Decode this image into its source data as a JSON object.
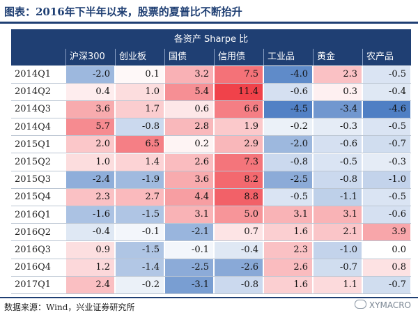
{
  "figure": {
    "title": "图表：2016年下半年以来，股票的夏普比不断抬升",
    "source": "数据来源：Wind，兴业证券研究所",
    "watermark": "XYMACRO"
  },
  "table": {
    "header_title": "各资产 Sharpe 比",
    "columns": [
      "沪深300",
      "创业板",
      "国债",
      "信用债",
      "工业品",
      "黄金",
      "农产品"
    ],
    "rows": [
      {
        "label": "2014Q1",
        "values": [
          "-2.0",
          "0.1",
          "3.2",
          "7.5",
          "-4.0",
          "2.3",
          "-0.5"
        ]
      },
      {
        "label": "2014Q2",
        "values": [
          "0.4",
          "1.0",
          "5.4",
          "11.4",
          "-0.6",
          "0.3",
          "-0.4"
        ]
      },
      {
        "label": "2014Q3",
        "values": [
          "3.6",
          "1.7",
          "0.6",
          "6.6",
          "-4.5",
          "-3.4",
          "-4.6"
        ]
      },
      {
        "label": "2014Q4",
        "values": [
          "5.7",
          "-0.8",
          "2.8",
          "1.9",
          "-0.2",
          "-0.3",
          "-0.5"
        ]
      },
      {
        "label": "2015Q1",
        "values": [
          "2.0",
          "6.5",
          "0.2",
          "2.9",
          "-2.0",
          "-0.6",
          "-0.7"
        ]
      },
      {
        "label": "2015Q2",
        "values": [
          "1.0",
          "1.4",
          "2.6",
          "7.3",
          "-0.8",
          "-0.5",
          "-0.3"
        ]
      },
      {
        "label": "2015Q3",
        "values": [
          "-2.4",
          "-1.9",
          "3.6",
          "8.2",
          "-2.5",
          "-0.8",
          "-1.0"
        ]
      },
      {
        "label": "2015Q4",
        "values": [
          "2.3",
          "2.7",
          "4.4",
          "8.8",
          "-0.5",
          "-1.1",
          "-0.5"
        ]
      },
      {
        "label": "2016Q1",
        "values": [
          "-1.6",
          "-1.5",
          "3.1",
          "5.0",
          "3.1",
          "3.1",
          "-0.6"
        ]
      },
      {
        "label": "2016Q2",
        "values": [
          "-0.4",
          "-0.1",
          "-2.1",
          "0.7",
          "1.6",
          "2.1",
          "3.9"
        ]
      },
      {
        "label": "2016Q3",
        "values": [
          "0.9",
          "-1.5",
          "-0.1",
          "-0.4",
          "2.3",
          "-1.0",
          "0.0"
        ]
      },
      {
        "label": "2016Q4",
        "values": [
          "1.2",
          "-1.4",
          "-2.5",
          "-2.6",
          "2.6",
          "-0.7",
          "0.8"
        ]
      },
      {
        "label": "2017Q1",
        "values": [
          "2.4",
          "-0.2",
          "-3.1",
          "-0.8",
          "1.6",
          "1.1",
          "-0.7"
        ]
      }
    ]
  },
  "chart_data": {
    "type": "heatmap",
    "title": "各资产 Sharpe 比",
    "x": [
      "沪深300",
      "创业板",
      "国债",
      "信用债",
      "工业品",
      "黄金",
      "农产品"
    ],
    "y": [
      "2014Q1",
      "2014Q2",
      "2014Q3",
      "2014Q4",
      "2015Q1",
      "2015Q2",
      "2015Q3",
      "2015Q4",
      "2016Q1",
      "2016Q2",
      "2016Q3",
      "2016Q4",
      "2017Q1"
    ],
    "values": [
      [
        -2.0,
        0.1,
        3.2,
        7.5,
        -4.0,
        2.3,
        -0.5
      ],
      [
        0.4,
        1.0,
        5.4,
        11.4,
        -0.6,
        0.3,
        -0.4
      ],
      [
        3.6,
        1.7,
        0.6,
        6.6,
        -4.5,
        -3.4,
        -4.6
      ],
      [
        5.7,
        -0.8,
        2.8,
        1.9,
        -0.2,
        -0.3,
        -0.5
      ],
      [
        2.0,
        6.5,
        0.2,
        2.9,
        -2.0,
        -0.6,
        -0.7
      ],
      [
        1.0,
        1.4,
        2.6,
        7.3,
        -0.8,
        -0.5,
        -0.3
      ],
      [
        -2.4,
        -1.9,
        3.6,
        8.2,
        -2.5,
        -0.8,
        -1.0
      ],
      [
        2.3,
        2.7,
        4.4,
        8.8,
        -0.5,
        -1.1,
        -0.5
      ],
      [
        -1.6,
        -1.5,
        3.1,
        5.0,
        3.1,
        3.1,
        -0.6
      ],
      [
        -0.4,
        -0.1,
        -2.1,
        0.7,
        1.6,
        2.1,
        3.9
      ],
      [
        0.9,
        -1.5,
        -0.1,
        -0.4,
        2.3,
        -1.0,
        0.0
      ],
      [
        1.2,
        -1.4,
        -2.5,
        -2.6,
        2.6,
        -0.7,
        0.8
      ],
      [
        2.4,
        -0.2,
        -3.1,
        -0.8,
        1.6,
        1.1,
        -0.7
      ]
    ],
    "color_scale": {
      "negative": "#4f7fc4",
      "neutral": "#ffffff",
      "positive": "#f0424a"
    }
  }
}
